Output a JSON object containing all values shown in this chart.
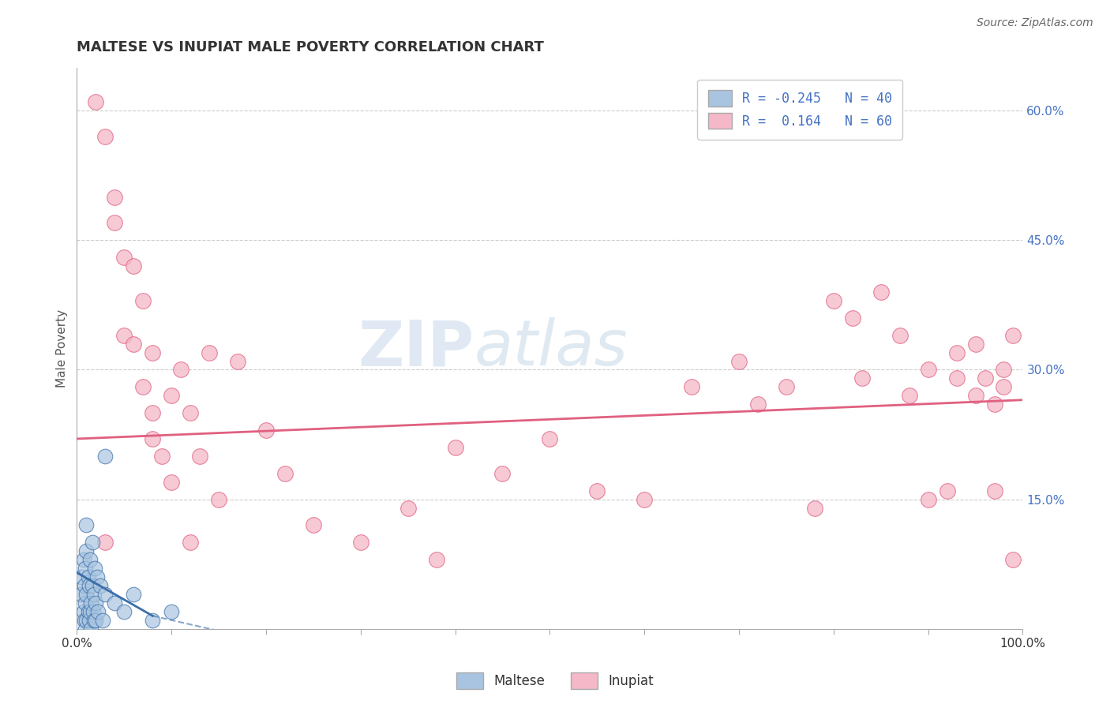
{
  "title": "MALTESE VS INUPIAT MALE POVERTY CORRELATION CHART",
  "source": "Source: ZipAtlas.com",
  "ylabel": "Male Poverty",
  "xlim": [
    0,
    1.0
  ],
  "ylim": [
    0,
    0.65
  ],
  "ytick_positions": [
    0.15,
    0.3,
    0.45,
    0.6
  ],
  "ytick_labels": [
    "15.0%",
    "30.0%",
    "45.0%",
    "60.0%"
  ],
  "maltese_R": -0.245,
  "maltese_N": 40,
  "inupiat_R": 0.164,
  "inupiat_N": 60,
  "maltese_color": "#a8c4e0",
  "maltese_line_color": "#3a6ea8",
  "inupiat_color": "#f4b8c8",
  "inupiat_line_color": "#e06080",
  "legend_label_maltese": "Maltese",
  "legend_label_inupiat": "Inupiat",
  "grid_color": "#cccccc",
  "background_color": "#ffffff",
  "maltese_x": [
    0.005,
    0.005,
    0.007,
    0.007,
    0.008,
    0.008,
    0.009,
    0.009,
    0.009,
    0.01,
    0.01,
    0.01,
    0.01,
    0.012,
    0.012,
    0.013,
    0.013,
    0.014,
    0.014,
    0.015,
    0.015,
    0.016,
    0.016,
    0.017,
    0.018,
    0.018,
    0.019,
    0.02,
    0.02,
    0.021,
    0.022,
    0.025,
    0.027,
    0.03,
    0.03,
    0.04,
    0.05,
    0.06,
    0.08,
    0.1
  ],
  "maltese_y": [
    0.04,
    0.06,
    0.02,
    0.08,
    0.01,
    0.05,
    0.0,
    0.03,
    0.07,
    0.01,
    0.04,
    0.09,
    0.12,
    0.02,
    0.06,
    0.01,
    0.05,
    0.02,
    0.08,
    0.0,
    0.03,
    0.05,
    0.1,
    0.02,
    0.01,
    0.04,
    0.07,
    0.01,
    0.03,
    0.06,
    0.02,
    0.05,
    0.01,
    0.04,
    0.2,
    0.03,
    0.02,
    0.04,
    0.01,
    0.02
  ],
  "inupiat_x": [
    0.02,
    0.03,
    0.03,
    0.04,
    0.04,
    0.05,
    0.05,
    0.06,
    0.06,
    0.07,
    0.07,
    0.08,
    0.08,
    0.08,
    0.09,
    0.1,
    0.1,
    0.11,
    0.12,
    0.12,
    0.13,
    0.14,
    0.15,
    0.17,
    0.2,
    0.22,
    0.25,
    0.3,
    0.35,
    0.38,
    0.4,
    0.45,
    0.5,
    0.55,
    0.6,
    0.65,
    0.7,
    0.72,
    0.75,
    0.78,
    0.8,
    0.82,
    0.83,
    0.85,
    0.87,
    0.88,
    0.9,
    0.9,
    0.92,
    0.93,
    0.93,
    0.95,
    0.95,
    0.96,
    0.97,
    0.97,
    0.98,
    0.98,
    0.99,
    0.99
  ],
  "inupiat_y": [
    0.61,
    0.57,
    0.1,
    0.5,
    0.47,
    0.43,
    0.34,
    0.42,
    0.33,
    0.38,
    0.28,
    0.32,
    0.25,
    0.22,
    0.2,
    0.27,
    0.17,
    0.3,
    0.25,
    0.1,
    0.2,
    0.32,
    0.15,
    0.31,
    0.23,
    0.18,
    0.12,
    0.1,
    0.14,
    0.08,
    0.21,
    0.18,
    0.22,
    0.16,
    0.15,
    0.28,
    0.31,
    0.26,
    0.28,
    0.14,
    0.38,
    0.36,
    0.29,
    0.39,
    0.34,
    0.27,
    0.15,
    0.3,
    0.16,
    0.32,
    0.29,
    0.27,
    0.33,
    0.29,
    0.16,
    0.26,
    0.3,
    0.28,
    0.34,
    0.08
  ],
  "maltese_line_x": [
    0.0,
    0.13
  ],
  "maltese_line_y": [
    0.065,
    0.0
  ],
  "inupiat_line_x": [
    0.0,
    1.0
  ],
  "inupiat_line_y": [
    0.22,
    0.265
  ]
}
